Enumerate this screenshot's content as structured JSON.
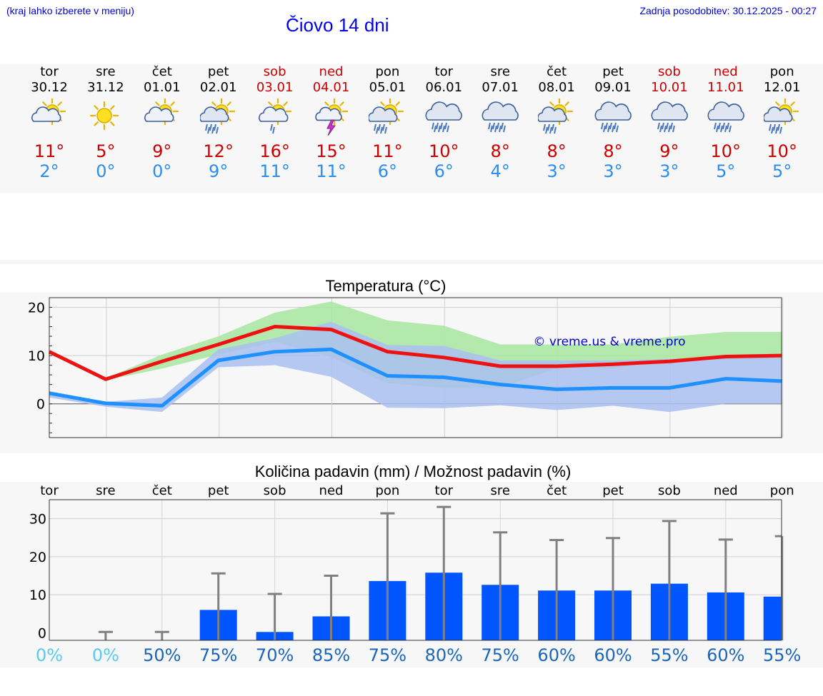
{
  "header": {
    "menu_hint": "(kraj lahko izberete v meniju)",
    "last_update": "Zadnja posodobitev: 30.12.2025 - 00:27",
    "title": "Čiovo 14 dni"
  },
  "colors": {
    "weekday": "#000000",
    "weekend": "#cc0000",
    "max_temp": "#cc0000",
    "min_temp": "#2a8ef0",
    "bar": "#0055ff",
    "range_max": "#a8e6a1",
    "range_min": "#a9c0f0",
    "pct_dry": "#55ccee",
    "pct_wet": "#1a66bb"
  },
  "days": [
    {
      "name": "tor",
      "date": "30.12",
      "weekend": false,
      "icon": "sun-cloud-icon",
      "max": "11°",
      "min": "2°"
    },
    {
      "name": "sre",
      "date": "31.12",
      "weekend": false,
      "icon": "sun-icon",
      "max": "5°",
      "min": "0°"
    },
    {
      "name": "čet",
      "date": "01.01",
      "weekend": false,
      "icon": "sun-cloud-icon",
      "max": "9°",
      "min": "0°"
    },
    {
      "name": "pet",
      "date": "02.01",
      "weekend": false,
      "icon": "sun-cloud-rain-icon",
      "max": "12°",
      "min": "9°"
    },
    {
      "name": "sob",
      "date": "03.01",
      "weekend": true,
      "icon": "sun-cloud-drizzle-icon",
      "max": "16°",
      "min": "11°"
    },
    {
      "name": "ned",
      "date": "04.01",
      "weekend": true,
      "icon": "sun-thunder-icon",
      "max": "15°",
      "min": "11°"
    },
    {
      "name": "pon",
      "date": "05.01",
      "weekend": false,
      "icon": "sun-cloud-rain-icon",
      "max": "11°",
      "min": "6°"
    },
    {
      "name": "tor",
      "date": "06.01",
      "weekend": false,
      "icon": "cloud-rain-icon",
      "max": "10°",
      "min": "6°"
    },
    {
      "name": "sre",
      "date": "07.01",
      "weekend": false,
      "icon": "cloud-rain-icon",
      "max": "8°",
      "min": "4°"
    },
    {
      "name": "čet",
      "date": "08.01",
      "weekend": false,
      "icon": "sun-cloud-rain-icon",
      "max": "8°",
      "min": "3°"
    },
    {
      "name": "pet",
      "date": "09.01",
      "weekend": false,
      "icon": "cloud-rain-icon",
      "max": "8°",
      "min": "3°"
    },
    {
      "name": "sob",
      "date": "10.01",
      "weekend": true,
      "icon": "cloud-rain-icon",
      "max": "9°",
      "min": "3°"
    },
    {
      "name": "ned",
      "date": "11.01",
      "weekend": true,
      "icon": "cloud-rain-icon",
      "max": "10°",
      "min": "5°"
    },
    {
      "name": "pon",
      "date": "12.01",
      "weekend": false,
      "icon": "sun-cloud-rain-icon",
      "max": "10°",
      "min": "5°"
    }
  ],
  "chart_data": [
    {
      "type": "line",
      "title": "Temperatura (°C)",
      "watermark": "© vreme.us & vreme.pro",
      "x": [
        "tor",
        "sre",
        "čet",
        "pet",
        "sob",
        "ned",
        "pon",
        "tor",
        "sre",
        "čet",
        "pet",
        "sob",
        "ned",
        "pon"
      ],
      "ylim": [
        -7,
        22
      ],
      "yticks": [
        "20",
        "10",
        "0"
      ],
      "series": [
        {
          "name": "max",
          "values": [
            10.8,
            5.1,
            8.8,
            12.3,
            16.0,
            15.4,
            10.8,
            9.6,
            7.8,
            7.8,
            8.2,
            8.8,
            9.8,
            10.0
          ]
        },
        {
          "name": "min",
          "values": [
            2.2,
            0.1,
            -0.4,
            9.0,
            10.8,
            11.3,
            5.8,
            5.5,
            4.0,
            3.0,
            3.3,
            3.3,
            5.2,
            4.7
          ]
        },
        {
          "name": "max_range_high",
          "values": [
            11.0,
            5.3,
            10.2,
            14.0,
            18.9,
            21.2,
            17.3,
            16.2,
            12.3,
            12.3,
            12.3,
            13.9,
            14.9,
            14.9
          ]
        },
        {
          "name": "max_range_low",
          "values": [
            10.6,
            4.9,
            7.3,
            10.2,
            12.8,
            9.7,
            4.3,
            3.3,
            3.3,
            7.4,
            7.4,
            9.3,
            9.2,
            9.3
          ]
        },
        {
          "name": "min_range_high",
          "values": [
            2.6,
            0.4,
            1.3,
            11.3,
            13.6,
            17.0,
            12.2,
            12.0,
            9.0,
            9.0,
            9.0,
            9.3,
            9.8,
            9.5
          ]
        },
        {
          "name": "min_range_low",
          "values": [
            1.3,
            -0.6,
            -1.7,
            7.6,
            8.0,
            5.6,
            -0.8,
            -0.9,
            -0.3,
            -1.3,
            -0.4,
            -1.7,
            0.0,
            0.0
          ]
        }
      ]
    },
    {
      "type": "bar",
      "title": "Količina padavin (mm) / Možnost padavin (%)",
      "categories": [
        "tor",
        "sre",
        "čet",
        "pet",
        "sob",
        "ned",
        "pon",
        "tor",
        "sre",
        "čet",
        "pet",
        "sob",
        "ned",
        "pon"
      ],
      "ylim": [
        -2,
        35
      ],
      "yticks": [
        "30",
        "20",
        "10",
        "0"
      ],
      "values": [
        0,
        0,
        0,
        6.0,
        0.2,
        4.3,
        13.6,
        15.8,
        12.6,
        11.1,
        11.1,
        12.9,
        10.6,
        9.5
      ],
      "error_max": [
        0,
        0.2,
        0.2,
        15.6,
        10.2,
        15.0,
        31.4,
        33.1,
        26.4,
        24.4,
        24.9,
        29.4,
        24.5,
        25.4
      ],
      "probability": [
        "0%",
        "0%",
        "50%",
        "75%",
        "70%",
        "85%",
        "75%",
        "80%",
        "75%",
        "60%",
        "60%",
        "55%",
        "60%",
        "55%"
      ]
    }
  ]
}
